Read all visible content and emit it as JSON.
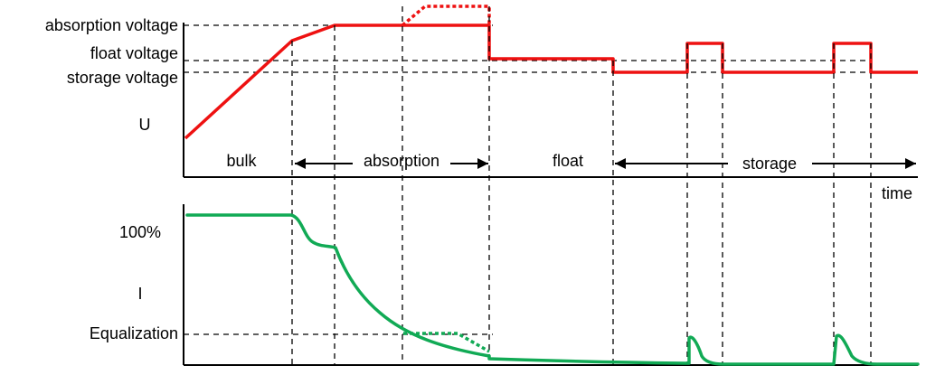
{
  "voltage_chart": {
    "levels": {
      "absorption": "absorption voltage",
      "float": "float voltage",
      "storage": "storage voltage"
    },
    "axis_label": "U",
    "x_axis_label": "time",
    "phases": {
      "bulk": "bulk",
      "absorption": "absorption",
      "float": "float",
      "storage": "storage"
    }
  },
  "current_chart": {
    "level_100": "100%",
    "axis_label": "I",
    "equalization": "Equalization"
  },
  "colors": {
    "voltage": "#ee1111",
    "current": "#11aa55"
  }
}
